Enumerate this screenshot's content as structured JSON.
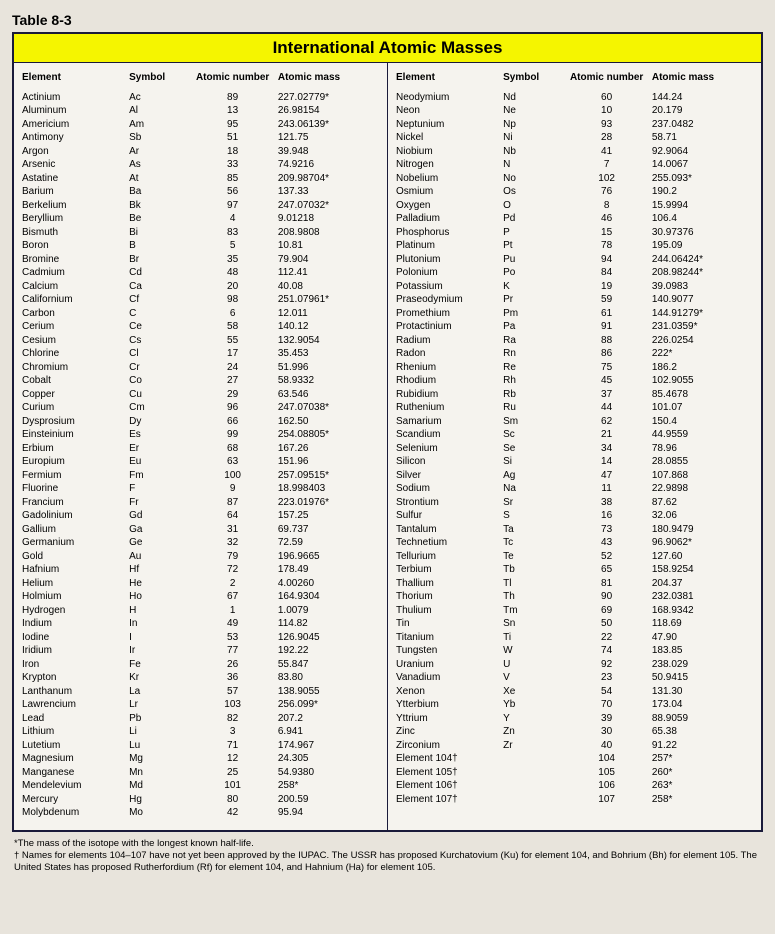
{
  "table_label": "Table 8-3",
  "title": "International Atomic Masses",
  "columns": [
    "Element",
    "Symbol",
    "Atomic number",
    "Atomic mass"
  ],
  "colors": {
    "title_bg": "#f5f500",
    "border": "#1a1a3a",
    "page_bg": "#e8e4dc",
    "table_bg": "#f5f3ee"
  },
  "left": [
    {
      "e": "Actinium",
      "s": "Ac",
      "n": "89",
      "m": "227.02779*"
    },
    {
      "e": "Aluminum",
      "s": "Al",
      "n": "13",
      "m": "26.98154"
    },
    {
      "e": "Americium",
      "s": "Am",
      "n": "95",
      "m": "243.06139*"
    },
    {
      "e": "Antimony",
      "s": "Sb",
      "n": "51",
      "m": "121.75"
    },
    {
      "e": "Argon",
      "s": "Ar",
      "n": "18",
      "m": "39.948"
    },
    {
      "e": "Arsenic",
      "s": "As",
      "n": "33",
      "m": "74.9216"
    },
    {
      "e": "Astatine",
      "s": "At",
      "n": "85",
      "m": "209.98704*"
    },
    {
      "e": "Barium",
      "s": "Ba",
      "n": "56",
      "m": "137.33"
    },
    {
      "e": "Berkelium",
      "s": "Bk",
      "n": "97",
      "m": "247.07032*"
    },
    {
      "e": "Beryllium",
      "s": "Be",
      "n": "4",
      "m": "9.01218"
    },
    {
      "e": "Bismuth",
      "s": "Bi",
      "n": "83",
      "m": "208.9808"
    },
    {
      "e": "Boron",
      "s": "B",
      "n": "5",
      "m": "10.81"
    },
    {
      "e": "Bromine",
      "s": "Br",
      "n": "35",
      "m": "79.904"
    },
    {
      "e": "Cadmium",
      "s": "Cd",
      "n": "48",
      "m": "112.41"
    },
    {
      "e": "Calcium",
      "s": "Ca",
      "n": "20",
      "m": "40.08"
    },
    {
      "e": "Californium",
      "s": "Cf",
      "n": "98",
      "m": "251.07961*"
    },
    {
      "e": "Carbon",
      "s": "C",
      "n": "6",
      "m": "12.011"
    },
    {
      "e": "Cerium",
      "s": "Ce",
      "n": "58",
      "m": "140.12"
    },
    {
      "e": "Cesium",
      "s": "Cs",
      "n": "55",
      "m": "132.9054"
    },
    {
      "e": "Chlorine",
      "s": "Cl",
      "n": "17",
      "m": "35.453"
    },
    {
      "e": "Chromium",
      "s": "Cr",
      "n": "24",
      "m": "51.996"
    },
    {
      "e": "Cobalt",
      "s": "Co",
      "n": "27",
      "m": "58.9332"
    },
    {
      "e": "Copper",
      "s": "Cu",
      "n": "29",
      "m": "63.546"
    },
    {
      "e": "Curium",
      "s": "Cm",
      "n": "96",
      "m": "247.07038*"
    },
    {
      "e": "Dysprosium",
      "s": "Dy",
      "n": "66",
      "m": "162.50"
    },
    {
      "e": "Einsteinium",
      "s": "Es",
      "n": "99",
      "m": "254.08805*"
    },
    {
      "e": "Erbium",
      "s": "Er",
      "n": "68",
      "m": "167.26"
    },
    {
      "e": "Europium",
      "s": "Eu",
      "n": "63",
      "m": "151.96"
    },
    {
      "e": "Fermium",
      "s": "Fm",
      "n": "100",
      "m": "257.09515*"
    },
    {
      "e": "Fluorine",
      "s": "F",
      "n": "9",
      "m": "18.998403"
    },
    {
      "e": "Francium",
      "s": "Fr",
      "n": "87",
      "m": "223.01976*"
    },
    {
      "e": "Gadolinium",
      "s": "Gd",
      "n": "64",
      "m": "157.25"
    },
    {
      "e": "Gallium",
      "s": "Ga",
      "n": "31",
      "m": "69.737"
    },
    {
      "e": "Germanium",
      "s": "Ge",
      "n": "32",
      "m": "72.59"
    },
    {
      "e": "Gold",
      "s": "Au",
      "n": "79",
      "m": "196.9665"
    },
    {
      "e": "Hafnium",
      "s": "Hf",
      "n": "72",
      "m": "178.49"
    },
    {
      "e": "Helium",
      "s": "He",
      "n": "2",
      "m": "4.00260"
    },
    {
      "e": "Holmium",
      "s": "Ho",
      "n": "67",
      "m": "164.9304"
    },
    {
      "e": "Hydrogen",
      "s": "H",
      "n": "1",
      "m": "1.0079"
    },
    {
      "e": "Indium",
      "s": "In",
      "n": "49",
      "m": "114.82"
    },
    {
      "e": "Iodine",
      "s": "I",
      "n": "53",
      "m": "126.9045"
    },
    {
      "e": "Iridium",
      "s": "Ir",
      "n": "77",
      "m": "192.22"
    },
    {
      "e": "Iron",
      "s": "Fe",
      "n": "26",
      "m": "55.847"
    },
    {
      "e": "Krypton",
      "s": "Kr",
      "n": "36",
      "m": "83.80"
    },
    {
      "e": "Lanthanum",
      "s": "La",
      "n": "57",
      "m": "138.9055"
    },
    {
      "e": "Lawrencium",
      "s": "Lr",
      "n": "103",
      "m": "256.099*"
    },
    {
      "e": "Lead",
      "s": "Pb",
      "n": "82",
      "m": "207.2"
    },
    {
      "e": "Lithium",
      "s": "Li",
      "n": "3",
      "m": "6.941"
    },
    {
      "e": "Lutetium",
      "s": "Lu",
      "n": "71",
      "m": "174.967"
    },
    {
      "e": "Magnesium",
      "s": "Mg",
      "n": "12",
      "m": "24.305"
    },
    {
      "e": "Manganese",
      "s": "Mn",
      "n": "25",
      "m": "54.9380"
    },
    {
      "e": "Mendelevium",
      "s": "Md",
      "n": "101",
      "m": "258*"
    },
    {
      "e": "Mercury",
      "s": "Hg",
      "n": "80",
      "m": "200.59"
    },
    {
      "e": "Molybdenum",
      "s": "Mo",
      "n": "42",
      "m": "95.94"
    }
  ],
  "right": [
    {
      "e": "Neodymium",
      "s": "Nd",
      "n": "60",
      "m": "144.24"
    },
    {
      "e": "Neon",
      "s": "Ne",
      "n": "10",
      "m": "20.179"
    },
    {
      "e": "Neptunium",
      "s": "Np",
      "n": "93",
      "m": "237.0482"
    },
    {
      "e": "Nickel",
      "s": "Ni",
      "n": "28",
      "m": "58.71"
    },
    {
      "e": "Niobium",
      "s": "Nb",
      "n": "41",
      "m": "92.9064"
    },
    {
      "e": "Nitrogen",
      "s": "N",
      "n": "7",
      "m": "14.0067"
    },
    {
      "e": "Nobelium",
      "s": "No",
      "n": "102",
      "m": "255.093*"
    },
    {
      "e": "Osmium",
      "s": "Os",
      "n": "76",
      "m": "190.2"
    },
    {
      "e": "Oxygen",
      "s": "O",
      "n": "8",
      "m": "15.9994"
    },
    {
      "e": "Palladium",
      "s": "Pd",
      "n": "46",
      "m": "106.4"
    },
    {
      "e": "Phosphorus",
      "s": "P",
      "n": "15",
      "m": "30.97376"
    },
    {
      "e": "Platinum",
      "s": "Pt",
      "n": "78",
      "m": "195.09"
    },
    {
      "e": "Plutonium",
      "s": "Pu",
      "n": "94",
      "m": "244.06424*"
    },
    {
      "e": "Polonium",
      "s": "Po",
      "n": "84",
      "m": "208.98244*"
    },
    {
      "e": "Potassium",
      "s": "K",
      "n": "19",
      "m": "39.0983"
    },
    {
      "e": "Praseodymium",
      "s": "Pr",
      "n": "59",
      "m": "140.9077"
    },
    {
      "e": "Promethium",
      "s": "Pm",
      "n": "61",
      "m": "144.91279*"
    },
    {
      "e": "Protactinium",
      "s": "Pa",
      "n": "91",
      "m": "231.0359*"
    },
    {
      "e": "Radium",
      "s": "Ra",
      "n": "88",
      "m": "226.0254"
    },
    {
      "e": "Radon",
      "s": "Rn",
      "n": "86",
      "m": "222*"
    },
    {
      "e": "Rhenium",
      "s": "Re",
      "n": "75",
      "m": "186.2"
    },
    {
      "e": "Rhodium",
      "s": "Rh",
      "n": "45",
      "m": "102.9055"
    },
    {
      "e": "Rubidium",
      "s": "Rb",
      "n": "37",
      "m": "85.4678"
    },
    {
      "e": "Ruthenium",
      "s": "Ru",
      "n": "44",
      "m": "101.07"
    },
    {
      "e": "Samarium",
      "s": "Sm",
      "n": "62",
      "m": "150.4"
    },
    {
      "e": "Scandium",
      "s": "Sc",
      "n": "21",
      "m": "44.9559"
    },
    {
      "e": "Selenium",
      "s": "Se",
      "n": "34",
      "m": "78.96"
    },
    {
      "e": "Silicon",
      "s": "Si",
      "n": "14",
      "m": "28.0855"
    },
    {
      "e": "Silver",
      "s": "Ag",
      "n": "47",
      "m": "107.868"
    },
    {
      "e": "Sodium",
      "s": "Na",
      "n": "11",
      "m": "22.9898"
    },
    {
      "e": "Strontium",
      "s": "Sr",
      "n": "38",
      "m": "87.62"
    },
    {
      "e": "Sulfur",
      "s": "S",
      "n": "16",
      "m": "32.06"
    },
    {
      "e": "Tantalum",
      "s": "Ta",
      "n": "73",
      "m": "180.9479"
    },
    {
      "e": "Technetium",
      "s": "Tc",
      "n": "43",
      "m": "96.9062*"
    },
    {
      "e": "Tellurium",
      "s": "Te",
      "n": "52",
      "m": "127.60"
    },
    {
      "e": "Terbium",
      "s": "Tb",
      "n": "65",
      "m": "158.9254"
    },
    {
      "e": "Thallium",
      "s": "Tl",
      "n": "81",
      "m": "204.37"
    },
    {
      "e": "Thorium",
      "s": "Th",
      "n": "90",
      "m": "232.0381"
    },
    {
      "e": "Thulium",
      "s": "Tm",
      "n": "69",
      "m": "168.9342"
    },
    {
      "e": "Tin",
      "s": "Sn",
      "n": "50",
      "m": "118.69"
    },
    {
      "e": "Titanium",
      "s": "Ti",
      "n": "22",
      "m": "47.90"
    },
    {
      "e": "Tungsten",
      "s": "W",
      "n": "74",
      "m": "183.85"
    },
    {
      "e": "Uranium",
      "s": "U",
      "n": "92",
      "m": "238.029"
    },
    {
      "e": "Vanadium",
      "s": "V",
      "n": "23",
      "m": "50.9415"
    },
    {
      "e": "Xenon",
      "s": "Xe",
      "n": "54",
      "m": "131.30"
    },
    {
      "e": "Ytterbium",
      "s": "Yb",
      "n": "70",
      "m": "173.04"
    },
    {
      "e": "Yttrium",
      "s": "Y",
      "n": "39",
      "m": "88.9059"
    },
    {
      "e": "Zinc",
      "s": "Zn",
      "n": "30",
      "m": "65.38"
    },
    {
      "e": "Zirconium",
      "s": "Zr",
      "n": "40",
      "m": "91.22"
    },
    {
      "e": "Element 104†",
      "s": "",
      "n": "104",
      "m": "257*"
    },
    {
      "e": "Element 105†",
      "s": "",
      "n": "105",
      "m": "260*"
    },
    {
      "e": "Element 106†",
      "s": "",
      "n": "106",
      "m": "263*"
    },
    {
      "e": "Element 107†",
      "s": "",
      "n": "107",
      "m": "258*"
    }
  ],
  "footnotes": [
    "*The mass of the isotope with the longest known half-life.",
    "† Names for elements 104–107 have not yet been approved by the IUPAC. The USSR has proposed Kurchatovium (Ku) for element 104, and Bohrium (Bh) for element 105. The United States has proposed Rutherfordium (Rf) for element 104, and Hahnium (Ha) for element 105."
  ]
}
